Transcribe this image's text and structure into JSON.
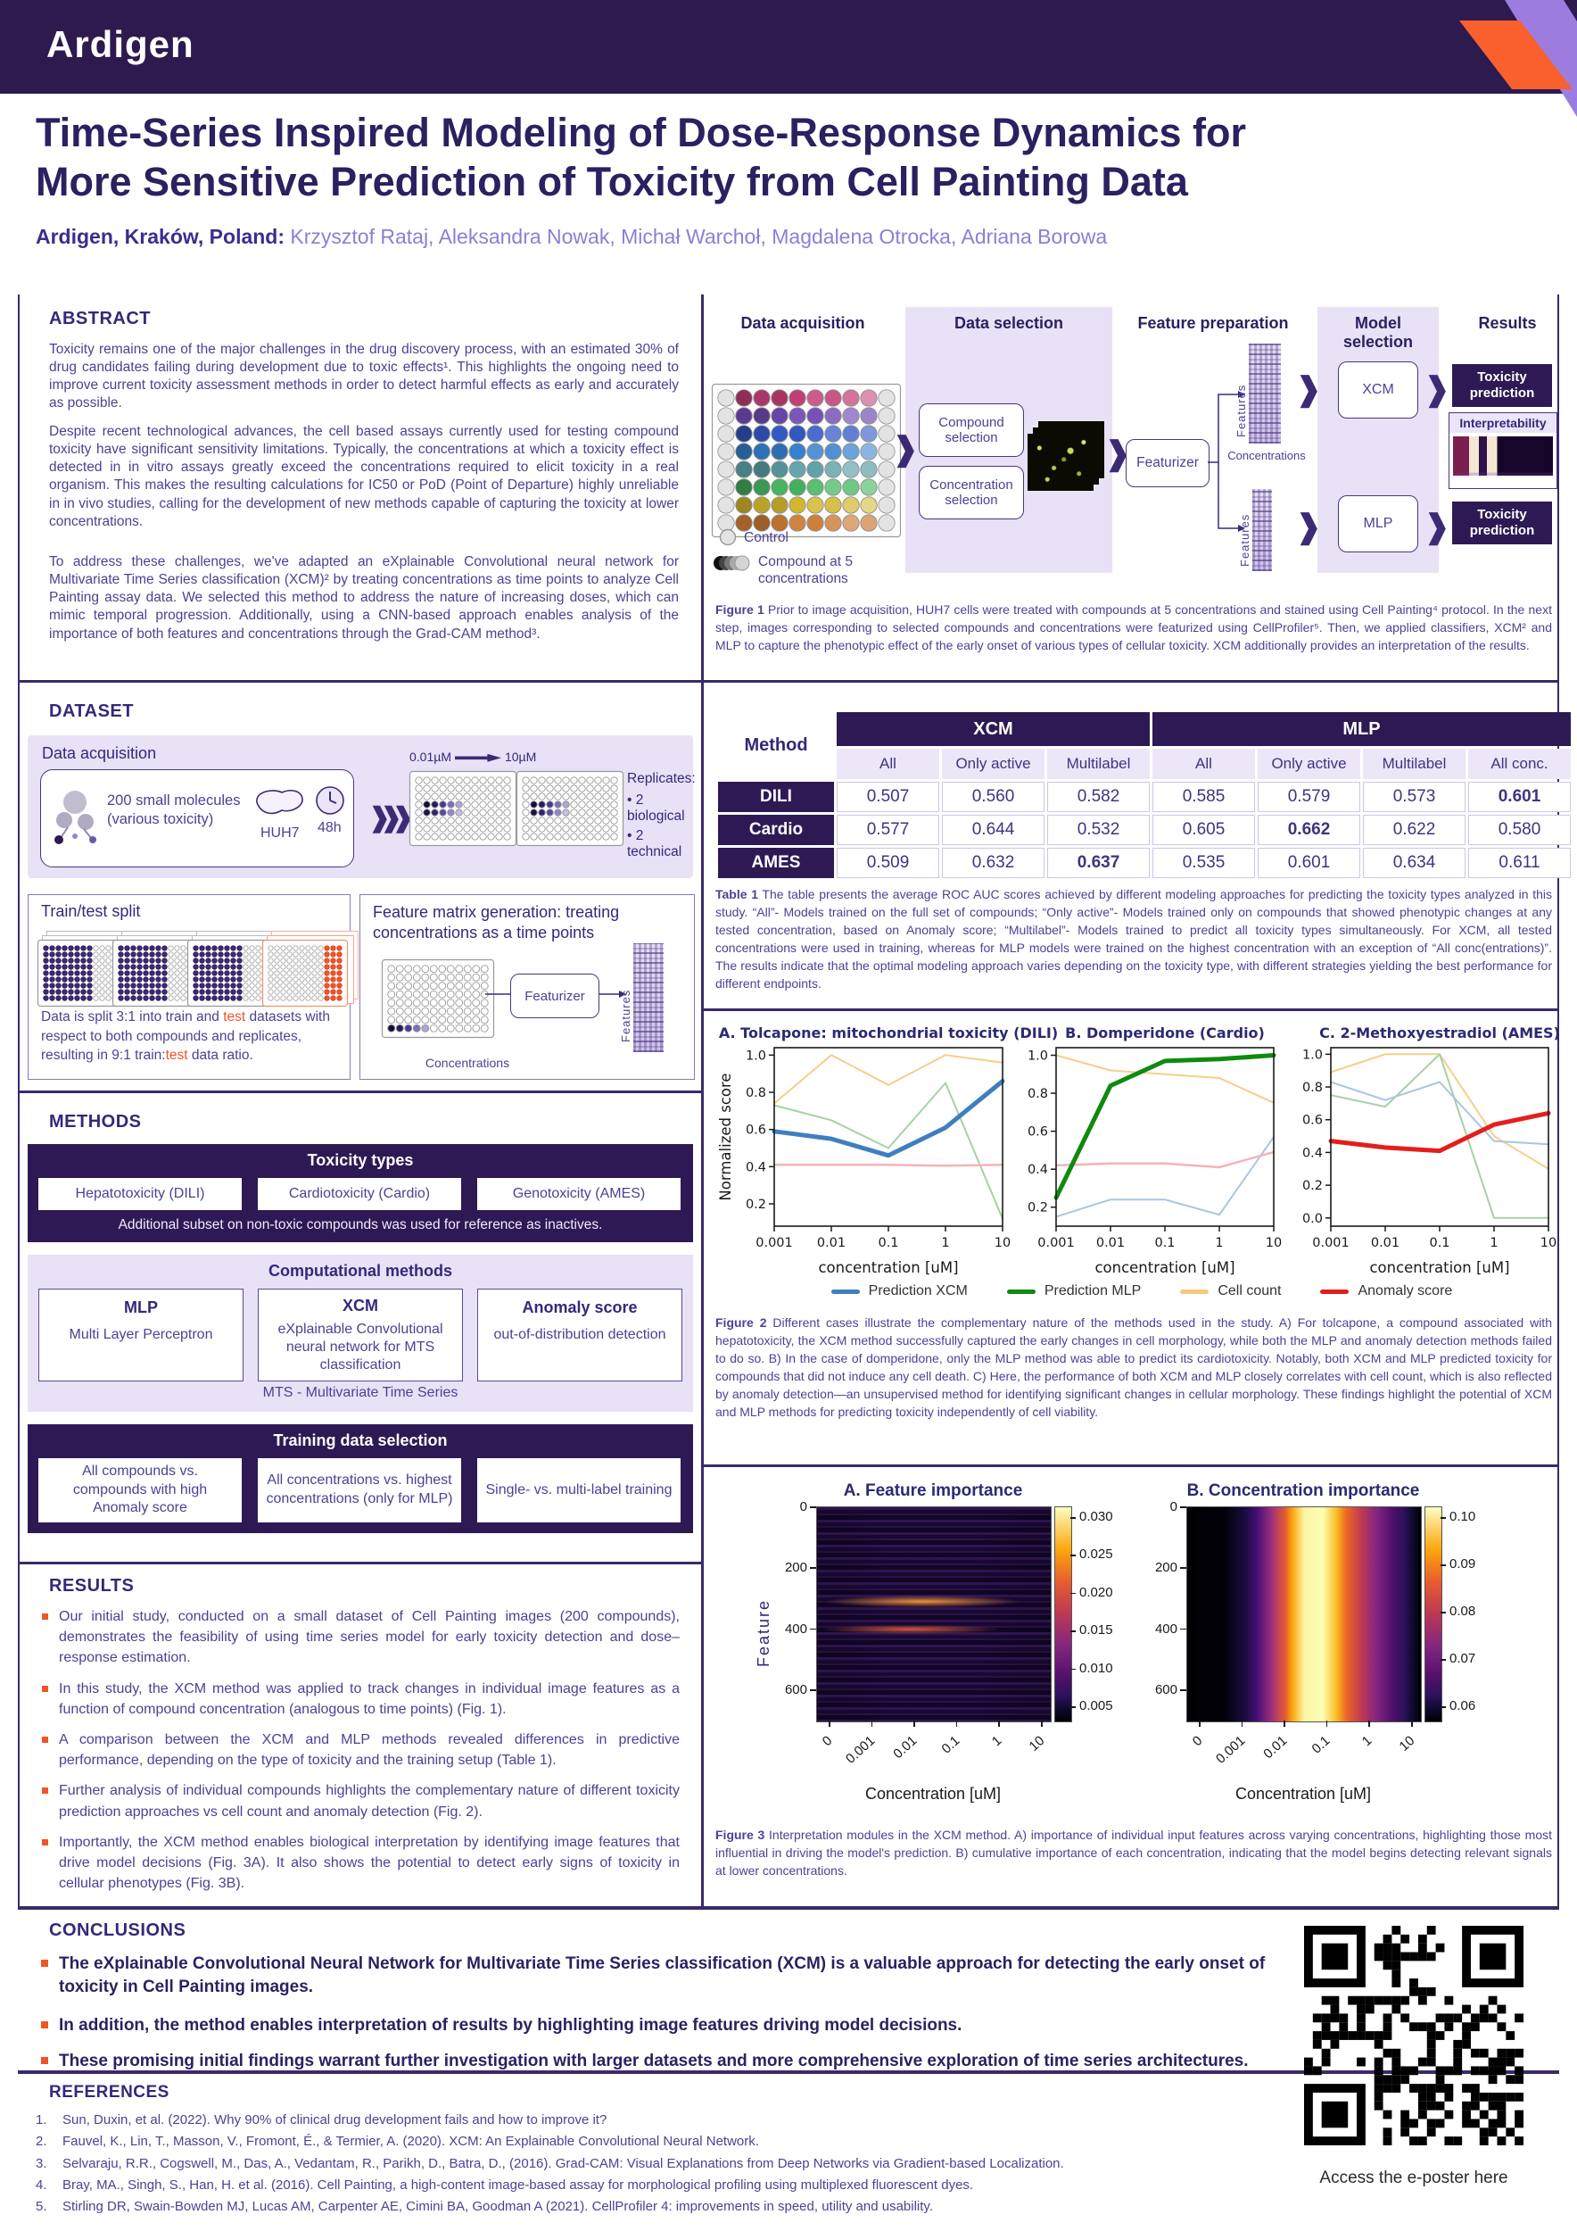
{
  "colors": {
    "header_purple": "#2d1a4e",
    "accent_orange": "#f0552a",
    "light_purple": "#9d7ce0",
    "panel_lavender": "#e9e1f6",
    "dark_box": "#2d1a54",
    "heading_purple": "#35287a",
    "text_purple": "#4c4294"
  },
  "brand": {
    "logo": "Ardigen"
  },
  "title": {
    "line1": "Time-Series Inspired Modeling of Dose-Response Dynamics for",
    "line2": "More Sensitive Prediction of Toxicity from Cell Painting Data"
  },
  "authors": {
    "affiliation": "Ardigen, Kraków, Poland:",
    "names": " Krzysztof Rataj, Aleksandra Nowak, Michał Warchoł, Magdalena Otrocka, Adriana Borowa"
  },
  "abstract": {
    "heading": "ABSTRACT",
    "p1": "Toxicity remains one of the major challenges in the drug discovery process, with an estimated 30% of drug candidates failing during development due to toxic effects¹. This highlights the ongoing need to improve current toxicity assessment methods in order to detect harmful effects as early and accurately as possible.",
    "p2": "Despite recent technological advances, the cell based assays currently used for testing compound toxicity have significant sensitivity limitations. Typically, the concentrations at which  a toxicity effect is detected in in vitro assays greatly exceed the concentrations required to elicit toxicity in a real organism. This makes the resulting calculations for IC50 or PoD (Point of Departure) highly unreliable in in vivo studies, calling for the development of new methods capable of capturing the toxicity at lower concentrations.",
    "p3": "To address these challenges, we've adapted an eXplainable Convolutional neural network for Multivariate Time Series classification (XCM)² by treating concentrations as time points to analyze Cell Painting assay data. We selected this method to address the nature of increasing doses, which can mimic temporal progression. Additionally, using a CNN-based approach enables analysis of the importance of both features and concentrations through the Grad-CAM method³."
  },
  "figure1": {
    "columns": [
      "Data acquisition",
      "Data selection",
      "Feature preparation",
      "Model selection",
      "Results"
    ],
    "boxes": {
      "compound": "Compound selection",
      "concentration": "Concentration selection",
      "featurizer": "Featurizer",
      "xcm": "XCM",
      "mlp": "MLP",
      "toxicity": "Toxicity prediction",
      "interpretability": "Interpretability"
    },
    "labels": {
      "features": "Features",
      "concentrations": "Concentrations",
      "control": "Control",
      "compound5": "Compound at 5 concentrations"
    },
    "caption_label": "Figure 1",
    "caption_text": " Prior to image acquisition, HUH7 cells were treated with compounds at 5 concentrations and stained using Cell Painting⁴ protocol. In the next step, images corresponding to selected compounds and concentrations were featurized using CellProfiler⁵. Then, we applied classifiers, XCM² and MLP to capture the phenotypic effect of the early onset of various types of cellular toxicity. XCM additionally provides an interpretation of the results."
  },
  "dataset": {
    "heading": "DATASET",
    "acquisition": {
      "label": "Data acquisition",
      "molecules_line1": "200 small molecules",
      "molecules_line2": "(various toxicity)",
      "cell_line": "HUH7",
      "time": "48h",
      "conc_min": "0.01µM",
      "conc_max": "10µM",
      "replicates_label": "Replicates:",
      "replicates": [
        "2 biological",
        "2 technical"
      ]
    },
    "split": {
      "title": "Train/test split",
      "segments": [
        "Data is split 3:1 into train and ",
        "test",
        " datasets with respect to both compounds and replicates, resulting in 9:1 train:",
        "test",
        " data ratio."
      ]
    },
    "feature_matrix": {
      "title": "Feature matrix generation: treating concentrations as a time points",
      "featurizer": "Featurizer",
      "features": "Features",
      "concentrations": "Concentrations"
    }
  },
  "methods": {
    "heading": "METHODS",
    "toxicity": {
      "header": "Toxicity types",
      "boxes": [
        "Hepatotoxicity (DILI)",
        "Cardiotoxicity (Cardio)",
        "Genotoxicity (AMES)"
      ],
      "note": "Additional subset on non-toxic compounds was used for reference as inactives."
    },
    "computational": {
      "header": "Computational methods",
      "boxes": [
        {
          "title": "MLP",
          "desc": "Multi Layer Perceptron"
        },
        {
          "title": "XCM",
          "desc": "eXplainable Convolutional neural network for MTS classification"
        },
        {
          "title": "Anomaly score",
          "desc": "out-of-distribution detection"
        }
      ],
      "note": "MTS - Multivariate Time Series"
    },
    "training": {
      "header": "Training data selection",
      "boxes": [
        "All compounds vs. compounds with high Anomaly score",
        "All concentrations vs. highest concentrations (only for MLP)",
        "Single- vs. multi-label training"
      ]
    }
  },
  "table1": {
    "method_header": "Method",
    "groups": [
      "XCM",
      "MLP"
    ],
    "subheaders": [
      "All",
      "Only active",
      "Multilabel",
      "All",
      "Only active",
      "Multilabel",
      "All conc."
    ],
    "rows": [
      {
        "label": "DILI",
        "values": [
          "0.507",
          "0.560",
          "0.582",
          "0.585",
          "0.579",
          "0.573",
          "0.601"
        ]
      },
      {
        "label": "Cardio",
        "values": [
          "0.577",
          "0.644",
          "0.532",
          "0.605",
          "0.662",
          "0.622",
          "0.580"
        ]
      },
      {
        "label": "AMES",
        "values": [
          "0.509",
          "0.632",
          "0.637",
          "0.535",
          "0.601",
          "0.634",
          "0.611"
        ]
      }
    ],
    "caption_label": "Table 1",
    "caption_text": " The table presents the average ROC AUC scores achieved by different modeling approaches for predicting the toxicity types analyzed in this study. “All”- Models trained on the full set of compounds; “Only active”- Models trained only on compounds that showed phenotypic changes at any tested concentration, based on Anomaly score; “Multilabel”- Models trained to predict all toxicity types simultaneously. For XCM, all tested concentrations were used in training, whereas for MLP models were trained on the highest concentration with an exception of “All conc(entrations)”. The results indicate that the optimal modeling approach varies depending on the toxicity type, with different strategies yielding the best performance for different endpoints."
  },
  "results": {
    "heading": "RESULTS",
    "bullets": [
      "Our initial study, conducted on a small dataset of Cell Painting images (200 compounds), demonstrates the feasibility of using time series model for early toxicity detection and dose–response estimation.",
      "In this study, the XCM method was applied to track changes in individual image features as a function of compound concentration (analogous to time points) (Fig. 1).",
      "A comparison between the XCM and MLP methods revealed differences in predictive performance, depending on the type of toxicity and the training setup (Table 1).",
      "Further analysis of individual compounds highlights the complementary nature of different toxicity prediction approaches vs cell count and anomaly detection (Fig. 2).",
      "Importantly, the XCM method enables biological interpretation by identifying image features that drive model decisions (Fig. 3A). It also shows the potential to detect early signs of toxicity in cellular phenotypes (Fig. 3B)."
    ]
  },
  "chart_data": [
    {
      "id": "fig2A",
      "type": "line",
      "title": "A. Tolcapone: mitochondrial toxicity (DILI)",
      "xlabel": "concentration [uM]",
      "ylabel": "Normalized score",
      "x": [
        "0.001",
        "0.01",
        "0.1",
        "1",
        "10"
      ],
      "xscale": "log",
      "ylim": [
        0.08,
        1.04
      ],
      "yticks": [
        0.2,
        0.4,
        0.6,
        0.8,
        1.0
      ],
      "series": [
        {
          "name": "Cell count",
          "color": "#f7cd8a",
          "width": 2,
          "values": [
            0.74,
            1.0,
            0.84,
            1.0,
            0.96
          ]
        },
        {
          "name": "Prediction MLP",
          "color": "#a9d0a4",
          "width": 2,
          "values": [
            0.73,
            0.65,
            0.5,
            0.85,
            0.12
          ]
        },
        {
          "name": "Anomaly score",
          "color": "#f4b3b8",
          "width": 2.5,
          "values": [
            0.41,
            0.41,
            0.41,
            0.405,
            0.41
          ]
        },
        {
          "name": "Prediction XCM",
          "color": "#3f7fbe",
          "width": 5,
          "values": [
            0.59,
            0.55,
            0.46,
            0.61,
            0.86
          ]
        }
      ]
    },
    {
      "id": "fig2B",
      "type": "line",
      "title": "B. Domperidone (Cardio)",
      "xlabel": "concentration [uM]",
      "ylabel": null,
      "x": [
        "0.001",
        "0.01",
        "0.1",
        "1",
        "10"
      ],
      "xscale": "log",
      "ylim": [
        0.1,
        1.04
      ],
      "yticks": [
        0.2,
        0.4,
        0.6,
        0.8,
        1.0
      ],
      "series": [
        {
          "name": "Cell count",
          "color": "#f7cd8a",
          "width": 2,
          "values": [
            1.0,
            0.92,
            0.9,
            0.88,
            0.75
          ]
        },
        {
          "name": "Prediction XCM",
          "color": "#a9c6e0",
          "width": 2,
          "values": [
            0.15,
            0.24,
            0.24,
            0.16,
            0.57
          ]
        },
        {
          "name": "Anomaly score",
          "color": "#f4b3b8",
          "width": 2.5,
          "values": [
            0.42,
            0.43,
            0.43,
            0.41,
            0.49
          ]
        },
        {
          "name": "Prediction MLP",
          "color": "#0f8a0f",
          "width": 5,
          "values": [
            0.25,
            0.84,
            0.97,
            0.98,
            1.0
          ]
        }
      ]
    },
    {
      "id": "fig2C",
      "type": "line",
      "title": "C. 2-Methoxyestradiol (AMES)",
      "xlabel": "concentration [uM]",
      "ylabel": null,
      "x": [
        "0.001",
        "0.01",
        "0.1",
        "1",
        "10"
      ],
      "xscale": "log",
      "ylim": [
        -0.05,
        1.04
      ],
      "yticks": [
        0.0,
        0.2,
        0.4,
        0.6,
        0.8,
        1.0
      ],
      "series": [
        {
          "name": "Cell count",
          "color": "#f7cd8a",
          "width": 2,
          "values": [
            0.89,
            1.0,
            1.0,
            0.5,
            0.3
          ]
        },
        {
          "name": "Prediction MLP",
          "color": "#a9d0a4",
          "width": 2,
          "values": [
            0.75,
            0.68,
            1.0,
            0.0,
            0.0
          ]
        },
        {
          "name": "Prediction XCM",
          "color": "#a9c6e0",
          "width": 2,
          "values": [
            0.83,
            0.72,
            0.83,
            0.47,
            0.45
          ]
        },
        {
          "name": "Anomaly score",
          "color": "#e51d1d",
          "width": 5,
          "values": [
            0.47,
            0.43,
            0.41,
            0.57,
            0.64
          ]
        }
      ]
    },
    {
      "id": "fig3A",
      "type": "heatmap",
      "title": "A.  Feature importance",
      "xlabel": "Concentration [uM]",
      "ylabel": "Feature",
      "xticks": [
        "0",
        "0.001",
        "0.01",
        "0.1",
        "1",
        "10"
      ],
      "yticks": [
        "0",
        "200",
        "400",
        "600"
      ],
      "colorbar_ticks": [
        "0.030",
        "0.025",
        "0.020",
        "0.015",
        "0.010",
        "0.005"
      ]
    },
    {
      "id": "fig3B",
      "type": "heatmap",
      "title": "B. Concentration importance",
      "xlabel": "Concentration [uM]",
      "ylabel": "",
      "xticks": [
        "0",
        "0.001",
        "0.01",
        "0.1",
        "1",
        "10"
      ],
      "yticks": [
        "0",
        "200",
        "400",
        "600"
      ],
      "colorbar_ticks": [
        "0.10",
        "0.09",
        "0.08",
        "0.07",
        "0.06"
      ]
    }
  ],
  "figure2": {
    "legend": [
      {
        "label": "Prediction XCM",
        "color": "#3f7fbe"
      },
      {
        "label": "Prediction MLP",
        "color": "#0f8a0f"
      },
      {
        "label": "Cell count",
        "color": "#f7c77d"
      },
      {
        "label": "Anomaly score",
        "color": "#e51d1d"
      }
    ],
    "caption_label": "Figure 2",
    "caption_text": " Different cases illustrate the complementary nature of the methods used in the study. A) For tolcapone, a compound associated with hepatotoxicity, the XCM method successfully captured the early changes in cell morphology, while both the MLP and anomaly detection methods failed to do so. B) In the case of domperidone, only the MLP method was able to predict its cardiotoxicity. Notably, both XCM and MLP predicted toxicity for compounds that did not induce any cell death. C) Here, the performance of both XCM and MLP closely correlates with cell count, which is also reflected by anomaly detection—an unsupervised method for identifying significant changes in cellular morphology. These findings highlight the potential of XCM and MLP methods for predicting toxicity independently of cell viability."
  },
  "figure3": {
    "caption_label": "Figure 3",
    "caption_text": " Interpretation modules in the XCM method. A) importance of individual input features across varying concentrations, highlighting those most influential in driving the model's prediction. B) cumulative importance of each concentration, indicating that the model begins detecting relevant signals at lower concentrations."
  },
  "conclusions": {
    "heading": "CONCLUSIONS",
    "bullets": [
      "The eXplainable Convolutional Neural Network for Multivariate Time Series classification (XCM) is a valuable approach for detecting the early onset of toxicity in Cell Painting images.",
      "In addition, the method enables interpretation of results by highlighting image features driving model decisions.",
      "These promising initial findings warrant further investigation with larger datasets and more comprehensive exploration of time series architectures."
    ]
  },
  "references": {
    "heading": "REFERENCES",
    "items": [
      "Sun, Duxin, et al. (2022). Why 90% of clinical drug development fails and how to improve it?",
      "Fauvel, K., Lin, T., Masson, V., Fromont, É., & Termier, A. (2020). XCM: An Explainable Convolutional Neural Network.",
      "Selvaraju, R.R., Cogswell, M., Das, A., Vedantam, R., Parikh, D.,  Batra, D., (2016). Grad-CAM: Visual Explanations from Deep Networks via Gradient-based Localization.",
      "Bray, MA., Singh, S., Han, H. et al. (2016). Cell Painting, a high-content image-based assay for morphological profiling using multiplexed fluorescent dyes.",
      "Stirling DR, Swain-Bowden MJ, Lucas AM, Carpenter AE, Cimini BA, Goodman A (2021). CellProfiler 4: improvements in speed, utility and usability."
    ]
  },
  "qr": {
    "label": "Access the e-poster here"
  }
}
